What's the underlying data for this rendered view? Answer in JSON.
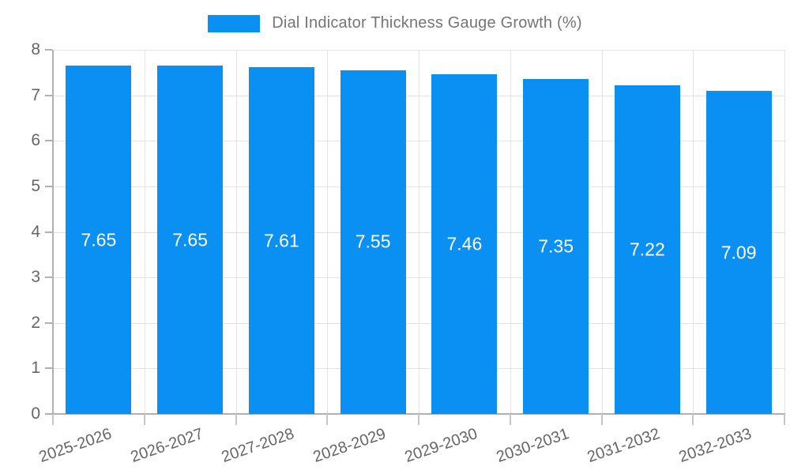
{
  "chart_data": {
    "type": "bar",
    "title": "Dial Indicator Thickness Gauge Growth (%)",
    "categories": [
      "2025-2026",
      "2026-2027",
      "2027-2028",
      "2028-2029",
      "2029-2030",
      "2030-2031",
      "2031-2032",
      "2032-2033"
    ],
    "values": [
      7.65,
      7.65,
      7.61,
      7.55,
      7.46,
      7.35,
      7.22,
      7.09
    ],
    "value_labels": [
      "7.65",
      "7.65",
      "7.61",
      "7.55",
      "7.46",
      "7.35",
      "7.22",
      "7.09"
    ],
    "xlabel": "",
    "ylabel": "",
    "ylim": [
      0,
      8
    ],
    "yticks": [
      0,
      1,
      2,
      3,
      4,
      5,
      6,
      7,
      8
    ],
    "grid": true,
    "legend_position": "top-center",
    "x_label_rotation_deg": -19
  },
  "colors": {
    "bar": "#0a8ff2",
    "grid": "#e3e3e3",
    "axis": "#b0b0b0",
    "tick_text": "#666666",
    "legend_text": "#757575",
    "value_label_text": "#ffffff",
    "background": "#ffffff"
  }
}
